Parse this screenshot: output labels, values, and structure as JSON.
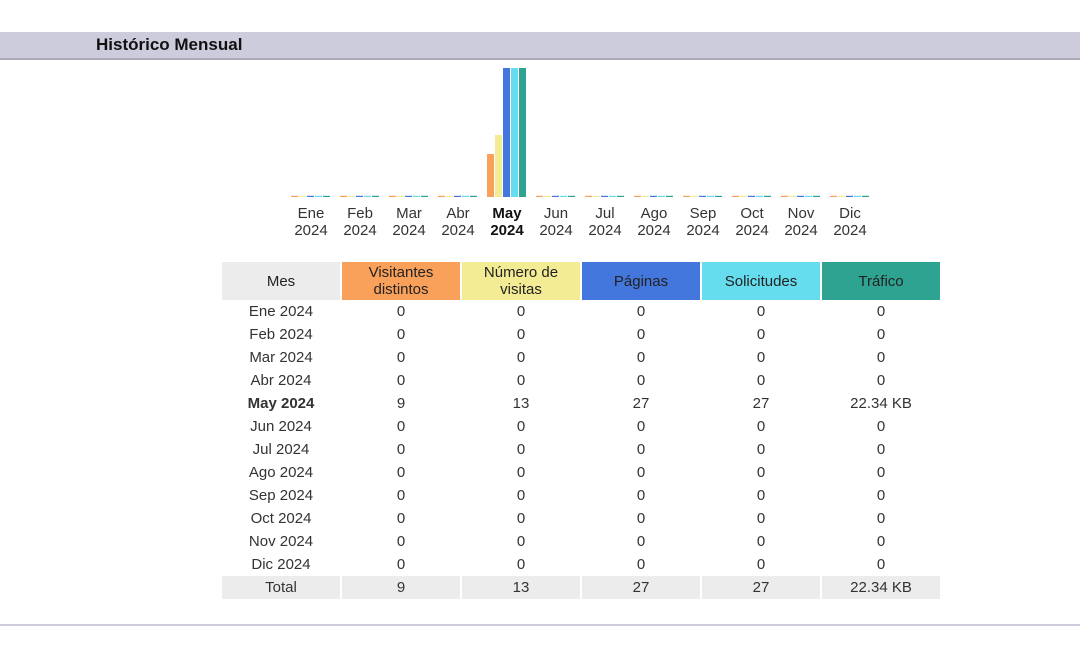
{
  "header": {
    "title": "Histórico Mensual"
  },
  "chart_data": {
    "type": "bar",
    "categories": [
      "Ene 2024",
      "Feb 2024",
      "Mar 2024",
      "Abr 2024",
      "May 2024",
      "Jun 2024",
      "Jul 2024",
      "Ago 2024",
      "Sep 2024",
      "Oct 2024",
      "Nov 2024",
      "Dic 2024"
    ],
    "category_lines": [
      [
        "Ene",
        "2024"
      ],
      [
        "Feb",
        "2024"
      ],
      [
        "Mar",
        "2024"
      ],
      [
        "Abr",
        "2024"
      ],
      [
        "May",
        "2024"
      ],
      [
        "Jun",
        "2024"
      ],
      [
        "Jul",
        "2024"
      ],
      [
        "Ago",
        "2024"
      ],
      [
        "Sep",
        "2024"
      ],
      [
        "Oct",
        "2024"
      ],
      [
        "Nov",
        "2024"
      ],
      [
        "Dic",
        "2024"
      ]
    ],
    "current_index": 4,
    "series": [
      {
        "name": "Visitantes distintos",
        "color": "#f9a05b",
        "values": [
          0,
          0,
          0,
          0,
          9,
          0,
          0,
          0,
          0,
          0,
          0,
          0
        ]
      },
      {
        "name": "Número de visitas",
        "color": "#f4ec94",
        "values": [
          0,
          0,
          0,
          0,
          13,
          0,
          0,
          0,
          0,
          0,
          0,
          0
        ]
      },
      {
        "name": "Páginas",
        "color": "#4477dd",
        "values": [
          0,
          0,
          0,
          0,
          27,
          0,
          0,
          0,
          0,
          0,
          0,
          0
        ]
      },
      {
        "name": "Solicitudes",
        "color": "#66ddee",
        "values": [
          0,
          0,
          0,
          0,
          27,
          0,
          0,
          0,
          0,
          0,
          0,
          0
        ]
      },
      {
        "name": "Tráfico",
        "color": "#2ea391",
        "values_kb": [
          0,
          0,
          0,
          0,
          22.34,
          0,
          0,
          0,
          0,
          0,
          0,
          0
        ]
      }
    ]
  },
  "table": {
    "headers": {
      "month": "Mes",
      "visitors": "Visitantes distintos",
      "visits": "Número de visitas",
      "pages": "Páginas",
      "hits": "Solicitudes",
      "bandwidth": "Tráfico"
    },
    "rows": [
      {
        "month": "Ene 2024",
        "visitors": "0",
        "visits": "0",
        "pages": "0",
        "hits": "0",
        "bandwidth": "0"
      },
      {
        "month": "Feb 2024",
        "visitors": "0",
        "visits": "0",
        "pages": "0",
        "hits": "0",
        "bandwidth": "0"
      },
      {
        "month": "Mar 2024",
        "visitors": "0",
        "visits": "0",
        "pages": "0",
        "hits": "0",
        "bandwidth": "0"
      },
      {
        "month": "Abr 2024",
        "visitors": "0",
        "visits": "0",
        "pages": "0",
        "hits": "0",
        "bandwidth": "0"
      },
      {
        "month": "May 2024",
        "visitors": "9",
        "visits": "13",
        "pages": "27",
        "hits": "27",
        "bandwidth": "22.34 KB",
        "current": true
      },
      {
        "month": "Jun 2024",
        "visitors": "0",
        "visits": "0",
        "pages": "0",
        "hits": "0",
        "bandwidth": "0"
      },
      {
        "month": "Jul 2024",
        "visitors": "0",
        "visits": "0",
        "pages": "0",
        "hits": "0",
        "bandwidth": "0"
      },
      {
        "month": "Ago 2024",
        "visitors": "0",
        "visits": "0",
        "pages": "0",
        "hits": "0",
        "bandwidth": "0"
      },
      {
        "month": "Sep 2024",
        "visitors": "0",
        "visits": "0",
        "pages": "0",
        "hits": "0",
        "bandwidth": "0"
      },
      {
        "month": "Oct 2024",
        "visitors": "0",
        "visits": "0",
        "pages": "0",
        "hits": "0",
        "bandwidth": "0"
      },
      {
        "month": "Nov 2024",
        "visitors": "0",
        "visits": "0",
        "pages": "0",
        "hits": "0",
        "bandwidth": "0"
      },
      {
        "month": "Dic 2024",
        "visitors": "0",
        "visits": "0",
        "pages": "0",
        "hits": "0",
        "bandwidth": "0"
      }
    ],
    "total": {
      "month": "Total",
      "visitors": "9",
      "visits": "13",
      "pages": "27",
      "hits": "27",
      "bandwidth": "22.34 KB"
    }
  }
}
